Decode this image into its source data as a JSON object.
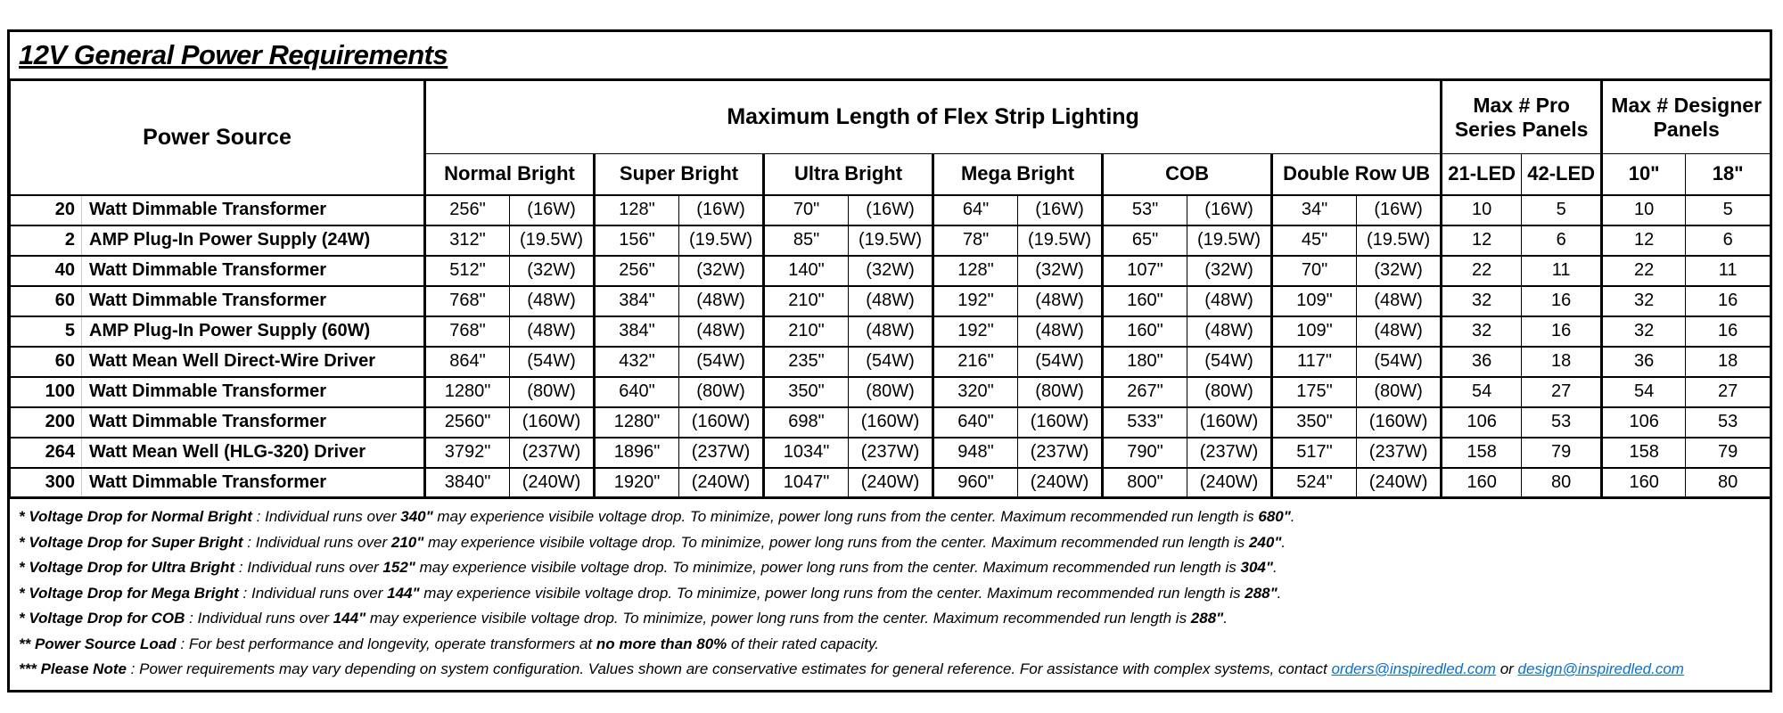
{
  "title": "12V General Power Requirements",
  "table": {
    "power_source_header": "Power Source",
    "flex_header": "Maximum Length of Flex Strip Lighting",
    "pro_panels_header": {
      "line1": "Max # Pro",
      "line2": "Series Panels"
    },
    "designer_panels_header": {
      "line1": "Max # Designer",
      "line2": "Panels"
    },
    "group_headers": [
      "Normal Bright",
      "Super Bright",
      "Ultra Bright",
      "Mega Bright",
      "COB",
      "Double Row UB"
    ],
    "panel_col_headers": [
      "21-LED",
      "42-LED",
      "10\"",
      "18\""
    ],
    "rows": [
      {
        "num": "20",
        "name": "Watt Dimmable Transformer",
        "cells": [
          [
            "256\"",
            "(16W)"
          ],
          [
            "128\"",
            "(16W)"
          ],
          [
            "70\"",
            "(16W)"
          ],
          [
            "64\"",
            "(16W)"
          ],
          [
            "53\"",
            "(16W)"
          ],
          [
            "34\"",
            "(16W)"
          ]
        ],
        "panels": [
          "10",
          "5",
          "10",
          "5"
        ]
      },
      {
        "num": "2",
        "name": "AMP Plug-In Power Supply (24W)",
        "cells": [
          [
            "312\"",
            "(19.5W)"
          ],
          [
            "156\"",
            "(19.5W)"
          ],
          [
            "85\"",
            "(19.5W)"
          ],
          [
            "78\"",
            "(19.5W)"
          ],
          [
            "65\"",
            "(19.5W)"
          ],
          [
            "45\"",
            "(19.5W)"
          ]
        ],
        "panels": [
          "12",
          "6",
          "12",
          "6"
        ]
      },
      {
        "num": "40",
        "name": "Watt Dimmable Transformer",
        "cells": [
          [
            "512\"",
            "(32W)"
          ],
          [
            "256\"",
            "(32W)"
          ],
          [
            "140\"",
            "(32W)"
          ],
          [
            "128\"",
            "(32W)"
          ],
          [
            "107\"",
            "(32W)"
          ],
          [
            "70\"",
            "(32W)"
          ]
        ],
        "panels": [
          "22",
          "11",
          "22",
          "11"
        ]
      },
      {
        "num": "60",
        "name": "Watt Dimmable Transformer",
        "cells": [
          [
            "768\"",
            "(48W)"
          ],
          [
            "384\"",
            "(48W)"
          ],
          [
            "210\"",
            "(48W)"
          ],
          [
            "192\"",
            "(48W)"
          ],
          [
            "160\"",
            "(48W)"
          ],
          [
            "109\"",
            "(48W)"
          ]
        ],
        "panels": [
          "32",
          "16",
          "32",
          "16"
        ]
      },
      {
        "num": "5",
        "name": "AMP Plug-In Power Supply (60W)",
        "cells": [
          [
            "768\"",
            "(48W)"
          ],
          [
            "384\"",
            "(48W)"
          ],
          [
            "210\"",
            "(48W)"
          ],
          [
            "192\"",
            "(48W)"
          ],
          [
            "160\"",
            "(48W)"
          ],
          [
            "109\"",
            "(48W)"
          ]
        ],
        "panels": [
          "32",
          "16",
          "32",
          "16"
        ]
      },
      {
        "num": "60",
        "name": "Watt Mean Well Direct-Wire Driver",
        "cells": [
          [
            "864\"",
            "(54W)"
          ],
          [
            "432\"",
            "(54W)"
          ],
          [
            "235\"",
            "(54W)"
          ],
          [
            "216\"",
            "(54W)"
          ],
          [
            "180\"",
            "(54W)"
          ],
          [
            "117\"",
            "(54W)"
          ]
        ],
        "panels": [
          "36",
          "18",
          "36",
          "18"
        ]
      },
      {
        "num": "100",
        "name": "Watt Dimmable Transformer",
        "cells": [
          [
            "1280\"",
            "(80W)"
          ],
          [
            "640\"",
            "(80W)"
          ],
          [
            "350\"",
            "(80W)"
          ],
          [
            "320\"",
            "(80W)"
          ],
          [
            "267\"",
            "(80W)"
          ],
          [
            "175\"",
            "(80W)"
          ]
        ],
        "panels": [
          "54",
          "27",
          "54",
          "27"
        ]
      },
      {
        "num": "200",
        "name": "Watt Dimmable Transformer",
        "cells": [
          [
            "2560\"",
            "(160W)"
          ],
          [
            "1280\"",
            "(160W)"
          ],
          [
            "698\"",
            "(160W)"
          ],
          [
            "640\"",
            "(160W)"
          ],
          [
            "533\"",
            "(160W)"
          ],
          [
            "350\"",
            "(160W)"
          ]
        ],
        "panels": [
          "106",
          "53",
          "106",
          "53"
        ]
      },
      {
        "num": "264",
        "name": "Watt Mean Well (HLG-320) Driver",
        "cells": [
          [
            "3792\"",
            "(237W)"
          ],
          [
            "1896\"",
            "(237W)"
          ],
          [
            "1034\"",
            "(237W)"
          ],
          [
            "948\"",
            "(237W)"
          ],
          [
            "790\"",
            "(237W)"
          ],
          [
            "517\"",
            "(237W)"
          ]
        ],
        "panels": [
          "158",
          "79",
          "158",
          "79"
        ]
      },
      {
        "num": "300",
        "name": "Watt Dimmable Transformer",
        "cells": [
          [
            "3840\"",
            "(240W)"
          ],
          [
            "1920\"",
            "(240W)"
          ],
          [
            "1047\"",
            "(240W)"
          ],
          [
            "960\"",
            "(240W)"
          ],
          [
            "800\"",
            "(240W)"
          ],
          [
            "524\"",
            "(240W)"
          ]
        ],
        "panels": [
          "160",
          "80",
          "160",
          "80"
        ]
      }
    ]
  },
  "footnotes": [
    {
      "parts": [
        {
          "t": "* Voltage Drop for Normal Bright",
          "b": true
        },
        {
          "t": " : Individual runs over ",
          "b": false
        },
        {
          "t": "340\"",
          "b": true
        },
        {
          "t": " may experience visibile voltage drop. To minimize, power long runs from the center. Maximum recommended run length is ",
          "b": false
        },
        {
          "t": "680\"",
          "b": true
        },
        {
          "t": ".",
          "b": false
        }
      ]
    },
    {
      "parts": [
        {
          "t": "* Voltage Drop for Super Bright",
          "b": true
        },
        {
          "t": " : Individual runs over ",
          "b": false
        },
        {
          "t": "210\"",
          "b": true
        },
        {
          "t": " may experience visibile voltage drop. To minimize, power long runs from the center. Maximum recommended run length is ",
          "b": false
        },
        {
          "t": "240\"",
          "b": true
        },
        {
          "t": ".",
          "b": false
        }
      ]
    },
    {
      "parts": [
        {
          "t": "* Voltage Drop for Ultra Bright",
          "b": true
        },
        {
          "t": " : Individual runs over ",
          "b": false
        },
        {
          "t": "152\"",
          "b": true
        },
        {
          "t": " may experience visibile voltage drop. To minimize, power long runs from the center. Maximum recommended run length is ",
          "b": false
        },
        {
          "t": "304\"",
          "b": true
        },
        {
          "t": ".",
          "b": false
        }
      ]
    },
    {
      "parts": [
        {
          "t": "* Voltage Drop for Mega Bright",
          "b": true
        },
        {
          "t": " : Individual runs over ",
          "b": false
        },
        {
          "t": "144\"",
          "b": true
        },
        {
          "t": " may experience visibile voltage drop. To minimize, power long runs from the center. Maximum recommended run length is ",
          "b": false
        },
        {
          "t": "288\"",
          "b": true
        },
        {
          "t": ".",
          "b": false
        }
      ]
    },
    {
      "parts": [
        {
          "t": "* Voltage Drop for COB",
          "b": true
        },
        {
          "t": " : Individual runs over ",
          "b": false
        },
        {
          "t": "144\"",
          "b": true
        },
        {
          "t": " may experience visibile voltage drop. To minimize, power long runs from the center. Maximum recommended run length is ",
          "b": false
        },
        {
          "t": "288\"",
          "b": true
        },
        {
          "t": ".",
          "b": false
        }
      ]
    },
    {
      "parts": [
        {
          "t": "** Power Source Load",
          "b": true
        },
        {
          "t": " : For best performance and longevity, operate transformers at ",
          "b": false
        },
        {
          "t": "no more than 80%",
          "b": true
        },
        {
          "t": " of their rated capacity.",
          "b": false
        }
      ]
    },
    {
      "parts": [
        {
          "t": "*** Please Note",
          "b": true
        },
        {
          "t": " : Power requirements may vary depending on system configuration. Values shown are conservative estimates for general reference. For assistance with complex systems, contact ",
          "b": false
        },
        {
          "t": "orders@inspiredled.com",
          "b": false,
          "link": true
        },
        {
          "t": " or ",
          "b": false
        },
        {
          "t": "design@inspiredled.com",
          "b": false,
          "link": true
        }
      ]
    }
  ],
  "colors": {
    "link": "#0b6fc9",
    "border": "#000000",
    "faint_divider": "#c8c8c8"
  }
}
